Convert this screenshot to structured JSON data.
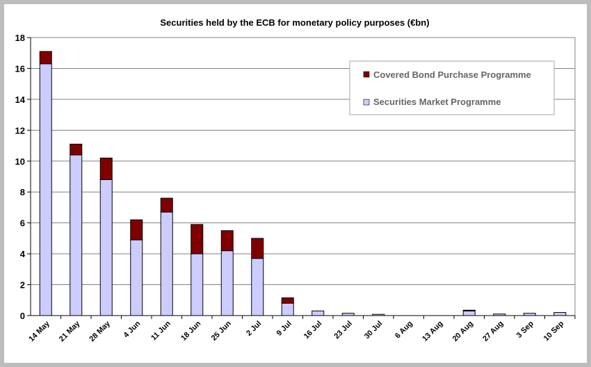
{
  "chart_data": {
    "type": "bar",
    "stacked": true,
    "title": "Securities held by the ECB for monetary policy purposes (€bn)",
    "xlabel": "",
    "ylabel": "",
    "ylim": [
      0,
      18
    ],
    "yticks": [
      0,
      2,
      4,
      6,
      8,
      10,
      12,
      14,
      16,
      18
    ],
    "grid": true,
    "legend_position": "top-right",
    "categories": [
      "14 May",
      "21 May",
      "28 May",
      "4 Jun",
      "11 Jun",
      "18 Jun",
      "25 Jun",
      "2 Jul",
      "9 Jul",
      "16 Jul",
      "23 Jul",
      "30 Jul",
      "6 Aug",
      "13 Aug",
      "20 Aug",
      "27 Aug",
      "3 Sep",
      "10 Sep"
    ],
    "series": [
      {
        "name": "Securities Market Programme",
        "color": "#ccccff",
        "values": [
          16.3,
          10.4,
          8.8,
          4.9,
          6.7,
          4.0,
          4.2,
          3.7,
          0.8,
          0.3,
          0.15,
          0.08,
          0,
          0,
          0.3,
          0.1,
          0.15,
          0.2
        ]
      },
      {
        "name": "Covered Bond Purchase Programme",
        "color": "#800000",
        "values": [
          0.8,
          0.7,
          1.4,
          1.3,
          0.9,
          1.9,
          1.3,
          1.3,
          0.35,
          0,
          0,
          0,
          0,
          0,
          0.05,
          0,
          0,
          0
        ]
      }
    ],
    "legend": [
      "Covered Bond Purchase Programme",
      "Securities Market Programme"
    ]
  }
}
